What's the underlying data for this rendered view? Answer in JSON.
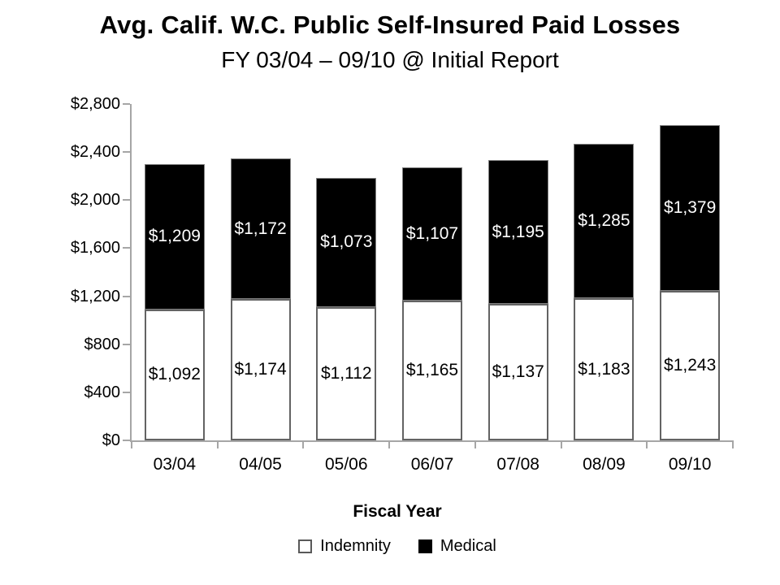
{
  "chart_data": {
    "type": "bar",
    "stacked": true,
    "title": "Avg. Calif. W.C. Public Self-Insured Paid Losses",
    "subtitle": "FY 03/04 – 09/10 @ Initial Report",
    "categories": [
      "03/04",
      "04/05",
      "05/06",
      "06/07",
      "07/08",
      "08/09",
      "09/10"
    ],
    "series": [
      {
        "name": "Indemnity",
        "color": "#ffffff",
        "values": [
          1092,
          1174,
          1112,
          1165,
          1137,
          1183,
          1243
        ],
        "labels": [
          "$1,092",
          "$1,174",
          "$1,112",
          "$1,165",
          "$1,137",
          "$1,183",
          "$1,243"
        ]
      },
      {
        "name": "Medical",
        "color": "#000000",
        "values": [
          1209,
          1172,
          1073,
          1107,
          1195,
          1285,
          1379
        ],
        "labels": [
          "$1,209",
          "$1,172",
          "$1,073",
          "$1,107",
          "$1,195",
          "$1,285",
          "$1,379"
        ]
      }
    ],
    "xlabel": "Fiscal Year",
    "ylabel": "",
    "ylim": [
      0,
      2800
    ],
    "ytick_step": 400,
    "ytick_labels": [
      "$0",
      "$400",
      "$800",
      "$1,200",
      "$1,600",
      "$2,000",
      "$2,400",
      "$2,800"
    ],
    "grid": false,
    "legend_position": "bottom",
    "axis_color": "#a6a6a6",
    "bar_border_color": "#636363"
  }
}
